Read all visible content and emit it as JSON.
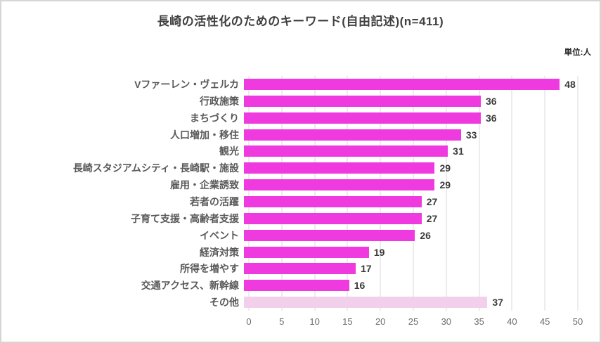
{
  "chart": {
    "title": "長崎の活性化のためのキーワード(自由記述)(n=411)",
    "unit_label": "単位:人"
  },
  "chart_data": {
    "type": "bar",
    "orientation": "horizontal",
    "title": "長崎の活性化のためのキーワード(自由記述)(n=411)",
    "unit_label": "単位:人",
    "categories": [
      "Vファーレン・ヴェルカ",
      "行政施策",
      "まちづくり",
      "人口増加・移住",
      "観光",
      "長崎スタジアムシティ・長崎駅・施設",
      "雇用・企業誘致",
      "若者の活躍",
      "子育て支援・高齢者支援",
      "イベント",
      "経済対策",
      "所得を増やす",
      "交通アクセス、新幹線",
      "その他"
    ],
    "values": [
      48,
      36,
      36,
      33,
      31,
      29,
      29,
      27,
      27,
      26,
      19,
      17,
      16,
      37
    ],
    "xticks": [
      0,
      5,
      10,
      15,
      20,
      25,
      30,
      35,
      40,
      45,
      50
    ],
    "xlim": [
      0,
      50
    ],
    "grid": true,
    "value_labels": true,
    "legend": "none",
    "bar_color": "#EF3ADF",
    "muted_bar_color": "#F2CFEB",
    "muted_categories": [
      "その他"
    ],
    "gridline_color": "#D9D9D9"
  }
}
